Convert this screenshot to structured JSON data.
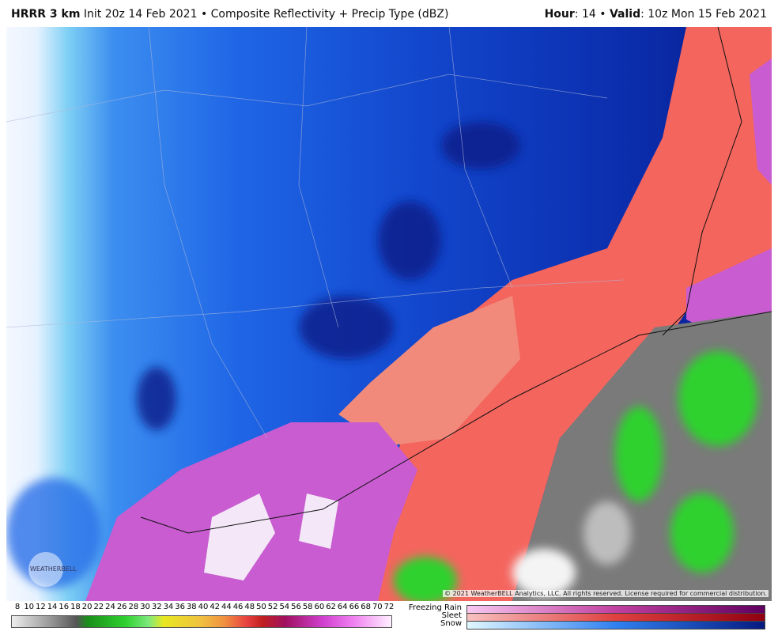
{
  "header": {
    "model": "HRRR 3 km",
    "init": "Init 20z 14 Feb 2021",
    "sep": "•",
    "product": "Composite Reflectivity + Precip Type (dBZ)",
    "hour_label": "Hour",
    "hour": ": 14",
    "sep2": "•",
    "valid_label": "Valid",
    "valid": ": 10z Mon 15 Feb 2021"
  },
  "logo": "WEATHERBELL",
  "copyright": "© 2021 WeatherBELL Analytics, LLC. All rights reserved. License required for commercial distribution.",
  "legend": {
    "scale": [
      8,
      10,
      12,
      14,
      16,
      18,
      20,
      22,
      24,
      26,
      28,
      30,
      32,
      34,
      36,
      38,
      40,
      42,
      44,
      46,
      48,
      50,
      52,
      54,
      56,
      58,
      60,
      62,
      64,
      66,
      68,
      70,
      72
    ],
    "types": [
      "Freezing Rain",
      "Sleet",
      "Snow"
    ]
  }
}
